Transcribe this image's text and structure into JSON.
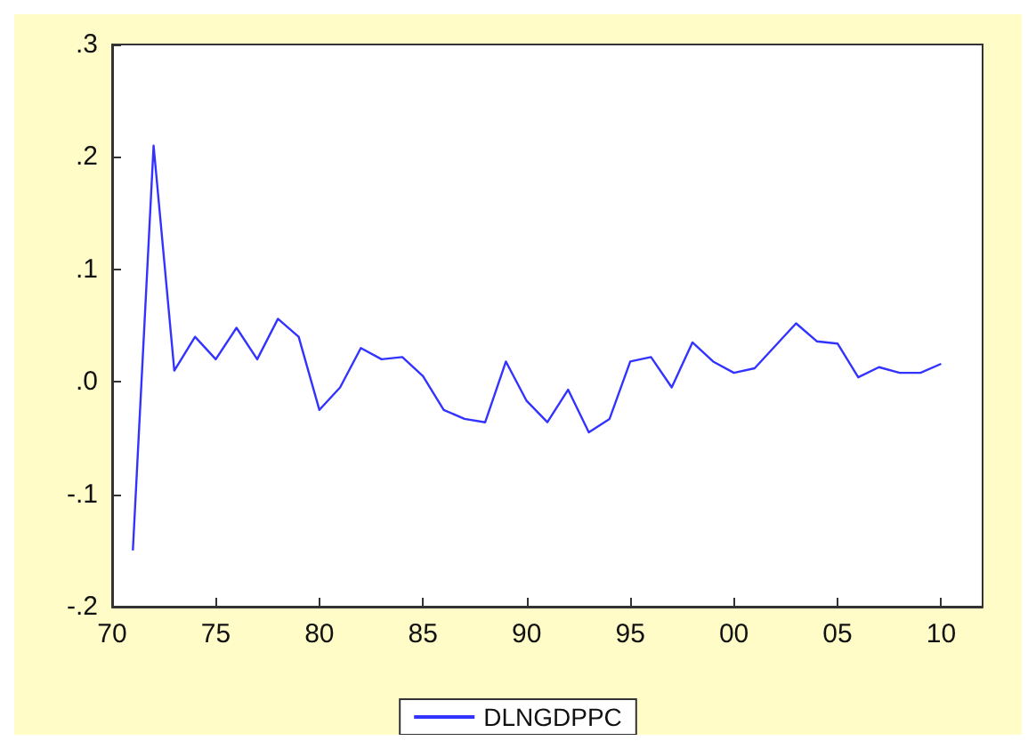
{
  "chart_data": {
    "type": "line",
    "x": [
      1971,
      1972,
      1973,
      1974,
      1975,
      1976,
      1977,
      1978,
      1979,
      1980,
      1981,
      1982,
      1983,
      1984,
      1985,
      1986,
      1987,
      1988,
      1989,
      1990,
      1991,
      1992,
      1993,
      1994,
      1995,
      1996,
      1997,
      1998,
      1999,
      2000,
      2001,
      2002,
      2003,
      2004,
      2005,
      2006,
      2007,
      2008,
      2009,
      2010
    ],
    "series": [
      {
        "name": "DLNGDPPC",
        "color": "#3333ff",
        "values": [
          -0.15,
          0.21,
          0.01,
          0.04,
          0.02,
          0.048,
          0.02,
          0.056,
          0.04,
          -0.025,
          -0.005,
          0.03,
          0.02,
          0.022,
          0.005,
          -0.025,
          -0.033,
          -0.036,
          0.018,
          -0.017,
          -0.036,
          -0.007,
          -0.045,
          -0.033,
          0.018,
          0.022,
          -0.005,
          0.035,
          0.018,
          0.008,
          0.012,
          0.032,
          0.052,
          0.036,
          0.034,
          0.004,
          0.013,
          0.008,
          0.008,
          0.016
        ]
      }
    ],
    "xlim": [
      1970,
      2012
    ],
    "xticks": [
      {
        "value": 1970,
        "label": "70"
      },
      {
        "value": 1975,
        "label": "75"
      },
      {
        "value": 1980,
        "label": "80"
      },
      {
        "value": 1985,
        "label": "85"
      },
      {
        "value": 1990,
        "label": "90"
      },
      {
        "value": 1995,
        "label": "95"
      },
      {
        "value": 2000,
        "label": "00"
      },
      {
        "value": 2005,
        "label": "05"
      },
      {
        "value": 2010,
        "label": "10"
      }
    ],
    "ylim": [
      -0.2,
      0.3
    ],
    "yticks": [
      {
        "value": -0.2,
        "label": "-.2"
      },
      {
        "value": -0.1,
        "label": "-.1"
      },
      {
        "value": 0,
        "label": ".0"
      },
      {
        "value": 0.1,
        "label": ".1"
      },
      {
        "value": 0.2,
        "label": ".2"
      },
      {
        "value": 0.3,
        "label": ".3"
      }
    ],
    "grid": false,
    "legend": "bottom",
    "marker": "none",
    "line_style": "solid"
  }
}
